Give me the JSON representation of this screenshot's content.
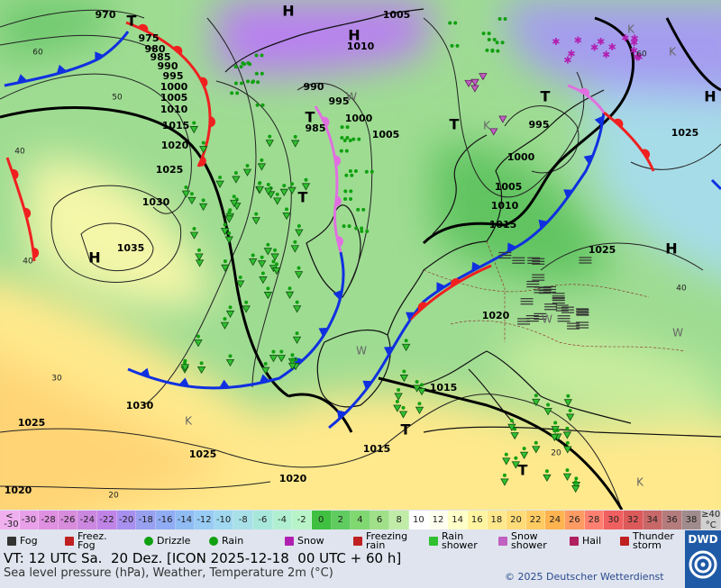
{
  "map": {
    "pressure_labels": [
      "970",
      "975",
      "980",
      "985",
      "990",
      "995",
      "1000",
      "1005",
      "1010",
      "1015",
      "1020",
      "1025",
      "1030",
      "1035",
      "1030",
      "1025",
      "1025",
      "1020",
      "1020",
      "1015",
      "1015",
      "1020",
      "1025",
      "1015",
      "1010",
      "1005",
      "1000",
      "995",
      "1025",
      "1005",
      "1010",
      "990",
      "995",
      "1000",
      "1005",
      "985"
    ],
    "centers": [
      "H",
      "H",
      "T",
      "T",
      "T",
      "T",
      "T",
      "H",
      "H",
      "H",
      "T",
      "T"
    ],
    "isotherm_labels": [
      "60",
      "50",
      "40",
      "40",
      "30",
      "20",
      "60",
      "40",
      "20"
    ],
    "air_mass_labels": [
      "W",
      "W",
      "W",
      "W",
      "K",
      "K",
      "K",
      "K",
      "K"
    ]
  },
  "temperature_scale": {
    "unit": "°C",
    "items": [
      {
        "label": "< -30",
        "color": "#f0b0f0"
      },
      {
        "label": "-30",
        "color": "#e8a0e8"
      },
      {
        "label": "-28",
        "color": "#e090e0"
      },
      {
        "label": "-26",
        "color": "#d88cdc"
      },
      {
        "label": "-24",
        "color": "#cc88e0"
      },
      {
        "label": "-22",
        "color": "#c084e8"
      },
      {
        "label": "-20",
        "color": "#a890f0"
      },
      {
        "label": "-18",
        "color": "#98a0f0"
      },
      {
        "label": "-16",
        "color": "#90acf4"
      },
      {
        "label": "-14",
        "color": "#90bcf4"
      },
      {
        "label": "-12",
        "color": "#98ccf4"
      },
      {
        "label": "-10",
        "color": "#a0d8f0"
      },
      {
        "label": "-8",
        "color": "#a8e0e8"
      },
      {
        "label": "-6",
        "color": "#a8e8dc"
      },
      {
        "label": "-4",
        "color": "#b0f0d0"
      },
      {
        "label": "-2",
        "color": "#b8f4c8"
      },
      {
        "label": "0",
        "color": "#40c040"
      },
      {
        "label": "2",
        "color": "#60cc60"
      },
      {
        "label": "4",
        "color": "#80d870"
      },
      {
        "label": "6",
        "color": "#a0e088"
      },
      {
        "label": "8",
        "color": "#c0eca8"
      },
      {
        "label": "10",
        "color": "#ffffff"
      },
      {
        "label": "12",
        "color": "#fffff0"
      },
      {
        "label": "14",
        "color": "#ffffc8"
      },
      {
        "label": "16",
        "color": "#fff4a0"
      },
      {
        "label": "18",
        "color": "#ffe88c"
      },
      {
        "label": "20",
        "color": "#ffdc78"
      },
      {
        "label": "22",
        "color": "#ffcc64"
      },
      {
        "label": "24",
        "color": "#ffb450"
      },
      {
        "label": "26",
        "color": "#ff9c64"
      },
      {
        "label": "28",
        "color": "#ff8070"
      },
      {
        "label": "30",
        "color": "#f06060"
      },
      {
        "label": "32",
        "color": "#dc5a5a"
      },
      {
        "label": "34",
        "color": "#c86868"
      },
      {
        "label": "36",
        "color": "#b47c7c"
      },
      {
        "label": "38",
        "color": "#a08c8c"
      },
      {
        "label": "≥40",
        "color": "#d0d0d0"
      }
    ]
  },
  "weather_legend": [
    "Fog",
    "Freez. Fog",
    "Drizzle",
    "Rain",
    "Snow",
    "Freezing rain",
    "Rain shower",
    "Snow shower",
    "Hail",
    "Thunder storm"
  ],
  "footer": {
    "valid_time": "VT: 12 UTC Sa.  20 Dez. [ICON 2025-12-18  00 UTC + 60 h]",
    "subtitle": "Sea level pressure (hPa), Weather, Temperature 2m (°C)",
    "copyright": "© 2025 Deutscher Wetterdienst",
    "logo": "DWD"
  }
}
